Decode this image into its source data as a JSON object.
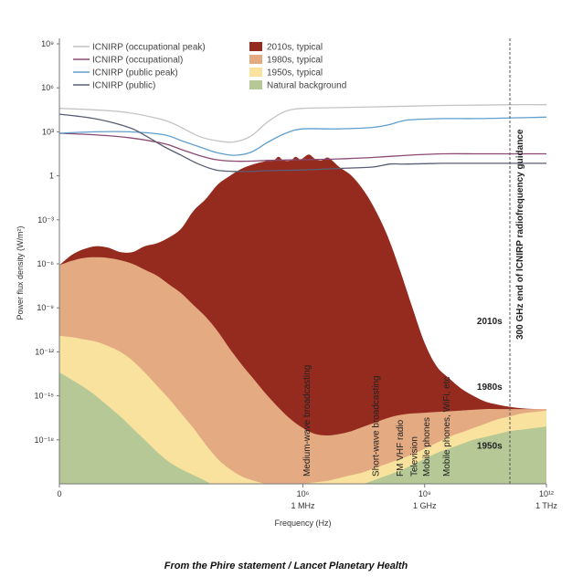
{
  "chart_data": {
    "type": "area",
    "xlabel": "Frequency (Hz)",
    "ylabel": "Power flux density (W/m²)",
    "x_scale": "log",
    "y_scale": "log",
    "xlim_log10": [
      0,
      12
    ],
    "ylim_log10": [
      -21,
      9
    ],
    "x_ticks": [
      {
        "value_log10": 0,
        "label": "0",
        "sublabel": ""
      },
      {
        "value_log10": 6,
        "label": "10⁶",
        "sublabel": "1 MHz"
      },
      {
        "value_log10": 9,
        "label": "10⁹",
        "sublabel": "1 GHz"
      },
      {
        "value_log10": 12,
        "label": "10¹²",
        "sublabel": "1 THz"
      }
    ],
    "y_ticks": [
      {
        "value_log10": 9,
        "label": "10⁹"
      },
      {
        "value_log10": 6,
        "label": "10⁶"
      },
      {
        "value_log10": 3,
        "label": "10³"
      },
      {
        "value_log10": 0,
        "label": "1"
      },
      {
        "value_log10": -3,
        "label": "10⁻³"
      },
      {
        "value_log10": -6,
        "label": "10⁻⁶"
      },
      {
        "value_log10": -9,
        "label": "10⁻⁹"
      },
      {
        "value_log10": -12,
        "label": "10⁻¹²"
      },
      {
        "value_log10": -15,
        "label": "10⁻¹⁵"
      },
      {
        "value_log10": -18,
        "label": "10⁻¹⁸"
      }
    ],
    "areas": [
      {
        "name": "2010s, typical",
        "color": "#952b1f",
        "label": "2010s",
        "label_at": [
          10.6,
          -10.1
        ],
        "points": [
          [
            0,
            -6.1
          ],
          [
            1,
            -5.4
          ],
          [
            2,
            -5
          ],
          [
            3,
            -4.8
          ],
          [
            4,
            -4.9
          ],
          [
            5,
            -5.2
          ],
          [
            6,
            -5.2
          ],
          [
            7,
            -4.8
          ],
          [
            8,
            -4.6
          ],
          [
            9,
            -4.2
          ],
          [
            10,
            -3.6
          ],
          [
            11,
            -2.4
          ],
          [
            12,
            -1.6
          ],
          [
            13,
            -0.6
          ],
          [
            14,
            0
          ],
          [
            15,
            0.5
          ],
          [
            16,
            0.8
          ],
          [
            17,
            1
          ],
          [
            17.6,
            1.05
          ],
          [
            18,
            1.3
          ],
          [
            18.4,
            1.05
          ],
          [
            19,
            1.05
          ],
          [
            19.4,
            1.3
          ],
          [
            19.8,
            1.1
          ],
          [
            20,
            1.2
          ],
          [
            20.5,
            1.45
          ],
          [
            21,
            1.15
          ],
          [
            21.5,
            1.05
          ],
          [
            22,
            1.25
          ],
          [
            22.4,
            1.05
          ],
          [
            23,
            0.6
          ],
          [
            24,
            0
          ],
          [
            25,
            -1
          ],
          [
            26,
            -2.4
          ],
          [
            27,
            -4.2
          ],
          [
            28,
            -6.5
          ],
          [
            29,
            -9
          ],
          [
            30,
            -11.4
          ],
          [
            31,
            -13
          ],
          [
            32,
            -13.8
          ],
          [
            33,
            -14.5
          ],
          [
            34,
            -15
          ],
          [
            35,
            -15.4
          ],
          [
            36,
            -15.6
          ],
          [
            37,
            -15.75
          ],
          [
            38,
            -15.85
          ],
          [
            39,
            -15.9
          ],
          [
            40,
            -15.95
          ]
        ]
      },
      {
        "name": "1980s, typical",
        "color": "#e4aa82",
        "label": "1980s",
        "label_at": [
          10.6,
          -14.6
        ],
        "points": [
          [
            0,
            -6.1
          ],
          [
            1,
            -5.8
          ],
          [
            2,
            -5.6
          ],
          [
            3,
            -5.55
          ],
          [
            4,
            -5.6
          ],
          [
            5,
            -5.75
          ],
          [
            6,
            -6
          ],
          [
            7,
            -6.4
          ],
          [
            8,
            -6.8
          ],
          [
            9,
            -7.4
          ],
          [
            10,
            -8
          ],
          [
            11,
            -8.8
          ],
          [
            12,
            -9.6
          ],
          [
            13,
            -10.6
          ],
          [
            14,
            -11.8
          ],
          [
            15,
            -12.9
          ],
          [
            16,
            -13.9
          ],
          [
            17,
            -14.9
          ],
          [
            18,
            -15.8
          ],
          [
            19,
            -16.6
          ],
          [
            20,
            -17.2
          ],
          [
            21,
            -17.6
          ],
          [
            22,
            -17.7
          ],
          [
            23,
            -17.6
          ],
          [
            24,
            -17.4
          ],
          [
            25,
            -17.1
          ],
          [
            26,
            -16.8
          ],
          [
            27,
            -16.5
          ],
          [
            28,
            -16.3
          ],
          [
            29,
            -16.2
          ],
          [
            30,
            -16.15
          ],
          [
            31,
            -16.1
          ],
          [
            32,
            -16.05
          ],
          [
            33,
            -16
          ],
          [
            34,
            -15.95
          ],
          [
            35,
            -15.9
          ],
          [
            36,
            -15.9
          ],
          [
            37,
            -15.9
          ],
          [
            38,
            -15.9
          ],
          [
            39,
            -15.9
          ],
          [
            40,
            -15.9
          ]
        ]
      },
      {
        "name": "1950s, typical",
        "color": "#f8e29d",
        "label": "1950s",
        "label_at": [
          10.6,
          -18.6
        ],
        "points": [
          [
            0,
            -10.9
          ],
          [
            1,
            -11
          ],
          [
            2,
            -11.15
          ],
          [
            3,
            -11.3
          ],
          [
            4,
            -11.6
          ],
          [
            5,
            -12
          ],
          [
            6,
            -12.6
          ],
          [
            7,
            -13.4
          ],
          [
            8,
            -14.3
          ],
          [
            9,
            -15.2
          ],
          [
            10,
            -16.2
          ],
          [
            11,
            -17.2
          ],
          [
            12,
            -18.3
          ],
          [
            13,
            -19.3
          ],
          [
            14,
            -20
          ],
          [
            15,
            -20.5
          ],
          [
            16,
            -20.8
          ],
          [
            17,
            -21
          ],
          [
            18,
            -21.05
          ],
          [
            19,
            -21.05
          ],
          [
            20,
            -21
          ],
          [
            21,
            -20.9
          ],
          [
            22,
            -20.8
          ],
          [
            23,
            -20.6
          ],
          [
            24,
            -20.4
          ],
          [
            25,
            -20.2
          ],
          [
            26,
            -19.9
          ],
          [
            27,
            -19.6
          ],
          [
            28,
            -19.3
          ],
          [
            29,
            -19
          ],
          [
            30,
            -18.6
          ],
          [
            31,
            -18.2
          ],
          [
            32,
            -17.8
          ],
          [
            33,
            -17.5
          ],
          [
            34,
            -17.2
          ],
          [
            35,
            -16.9
          ],
          [
            36,
            -16.6
          ],
          [
            37,
            -16.4
          ],
          [
            38,
            -16.2
          ],
          [
            39,
            -16.1
          ],
          [
            40,
            -16
          ]
        ]
      },
      {
        "name": "Natural background",
        "color": "#b6c896",
        "label": "",
        "label_at": [],
        "points": [
          [
            0,
            -13.4
          ],
          [
            1,
            -13.9
          ],
          [
            2,
            -14.4
          ],
          [
            3,
            -15
          ],
          [
            4,
            -15.7
          ],
          [
            5,
            -16.4
          ],
          [
            6,
            -17.2
          ],
          [
            7,
            -18
          ],
          [
            8,
            -18.8
          ],
          [
            9,
            -19.5
          ],
          [
            10,
            -20
          ],
          [
            11,
            -20.4
          ],
          [
            12,
            -20.8
          ],
          [
            13,
            -21.3
          ],
          [
            14,
            -21.8
          ],
          [
            15,
            -22.2
          ],
          [
            16,
            -22.5
          ],
          [
            17,
            -22.6
          ],
          [
            18,
            -22.6
          ],
          [
            19,
            -22.55
          ],
          [
            20,
            -22.4
          ],
          [
            21,
            -22.2
          ],
          [
            22,
            -22
          ],
          [
            23,
            -21.7
          ],
          [
            24,
            -21.3
          ],
          [
            25,
            -21
          ],
          [
            26,
            -20.7
          ],
          [
            27,
            -20.4
          ],
          [
            28,
            -20.1
          ],
          [
            29,
            -19.7
          ],
          [
            30,
            -19.3
          ],
          [
            31,
            -18.9
          ],
          [
            32,
            -18.6
          ],
          [
            33,
            -18.3
          ],
          [
            34,
            -18
          ],
          [
            35,
            -17.8
          ],
          [
            36,
            -17.6
          ],
          [
            37,
            -17.4
          ],
          [
            38,
            -17.3
          ],
          [
            39,
            -17.2
          ],
          [
            40,
            -17.1
          ]
        ]
      }
    ],
    "area_x_note": "area point x values are in 0.3-decade steps of log10(Hz)",
    "lines": [
      {
        "name": "ICNIRP (occupational peak)",
        "color": "#c4c4c4",
        "points": [
          [
            0,
            4.6
          ],
          [
            1,
            4.5
          ],
          [
            2,
            4.3
          ],
          [
            3,
            3.8
          ],
          [
            3.5,
            3.3
          ],
          [
            4,
            2.7
          ],
          [
            4.5,
            2.4
          ],
          [
            5,
            2.3
          ],
          [
            5.5,
            2.7
          ],
          [
            6,
            3.7
          ],
          [
            6.5,
            4.4
          ],
          [
            7,
            4.6
          ],
          [
            8,
            4.65
          ],
          [
            9,
            4.7
          ],
          [
            10,
            4.75
          ],
          [
            11,
            4.8
          ],
          [
            12,
            4.82
          ],
          [
            13,
            4.85
          ],
          [
            14,
            4.85
          ]
        ]
      },
      {
        "name": "ICNIRP (occupational)",
        "color": "#8a4a72",
        "points": [
          [
            0,
            2.9
          ],
          [
            1,
            2.8
          ],
          [
            2,
            2.6
          ],
          [
            3,
            2.2
          ],
          [
            3.5,
            1.8
          ],
          [
            4,
            1.4
          ],
          [
            4.5,
            1.1
          ],
          [
            5,
            1.0
          ],
          [
            5.5,
            1.0
          ],
          [
            6,
            1.05
          ],
          [
            7,
            1.1
          ],
          [
            8,
            1.15
          ],
          [
            9,
            1.25
          ],
          [
            10,
            1.4
          ],
          [
            11,
            1.5
          ],
          [
            12,
            1.5
          ],
          [
            13,
            1.5
          ],
          [
            14,
            1.5
          ]
        ]
      },
      {
        "name": "ICNIRP (public peak)",
        "color": "#5f9fcd",
        "points": [
          [
            0,
            2.9
          ],
          [
            1,
            3
          ],
          [
            2,
            3
          ],
          [
            3,
            2.8
          ],
          [
            3.5,
            2.4
          ],
          [
            4,
            2
          ],
          [
            4.5,
            1.6
          ],
          [
            5,
            1.4
          ],
          [
            5.5,
            1.6
          ],
          [
            6,
            2.3
          ],
          [
            6.5,
            2.9
          ],
          [
            7,
            3.2
          ],
          [
            8,
            3.2
          ],
          [
            9,
            3.3
          ],
          [
            9.5,
            3.5
          ],
          [
            10,
            3.8
          ],
          [
            11,
            3.9
          ],
          [
            12,
            3.9
          ],
          [
            13,
            3.95
          ],
          [
            14,
            4
          ]
        ]
      },
      {
        "name": "ICNIRP (public)",
        "color": "#5a5e75",
        "points": [
          [
            0,
            4.2
          ],
          [
            1,
            3.9
          ],
          [
            2,
            3.3
          ],
          [
            2.5,
            2.7
          ],
          [
            3,
            2
          ],
          [
            3.5,
            1.4
          ],
          [
            4,
            0.8
          ],
          [
            4.5,
            0.4
          ],
          [
            5,
            0.3
          ],
          [
            5.5,
            0.3
          ],
          [
            6,
            0.35
          ],
          [
            7,
            0.4
          ],
          [
            8,
            0.5
          ],
          [
            9,
            0.6
          ],
          [
            9.5,
            0.8
          ],
          [
            10,
            0.8
          ],
          [
            11,
            0.85
          ],
          [
            12,
            0.85
          ],
          [
            13,
            0.85
          ],
          [
            14,
            0.85
          ]
        ]
      }
    ],
    "line_x_note": "line point x values are in 0.857-decade steps of log10(Hz)",
    "guidance_line": {
      "frequency_log10": 11.1,
      "label": "300 GHz end of ICNIRP radiofrequency guidance"
    },
    "annotations": [
      {
        "text": "Medium-wave broadcasting",
        "x_log10": 6.1
      },
      {
        "text": "Short-wave broadcasting",
        "x_log10": 7.8
      },
      {
        "text": "FM VHF radio",
        "x_log10": 8.4
      },
      {
        "text": "Television",
        "x_log10": 8.75
      },
      {
        "text": "Mobile phones",
        "x_log10": 9.05
      },
      {
        "text": "Mobile phones, WiFi, etc",
        "x_log10": 9.55
      }
    ],
    "legend": {
      "placement": "top",
      "line_entries": [
        "ICNIRP (occupational peak)",
        "ICNIRP (occupational)",
        "ICNIRP (public peak)",
        "ICNIRP (public)"
      ],
      "area_entries": [
        "2010s, typical",
        "1980s, typical",
        "1950s, typical",
        "Natural background"
      ]
    }
  },
  "caption": "From the Phire statement / Lancet Planetary Health"
}
